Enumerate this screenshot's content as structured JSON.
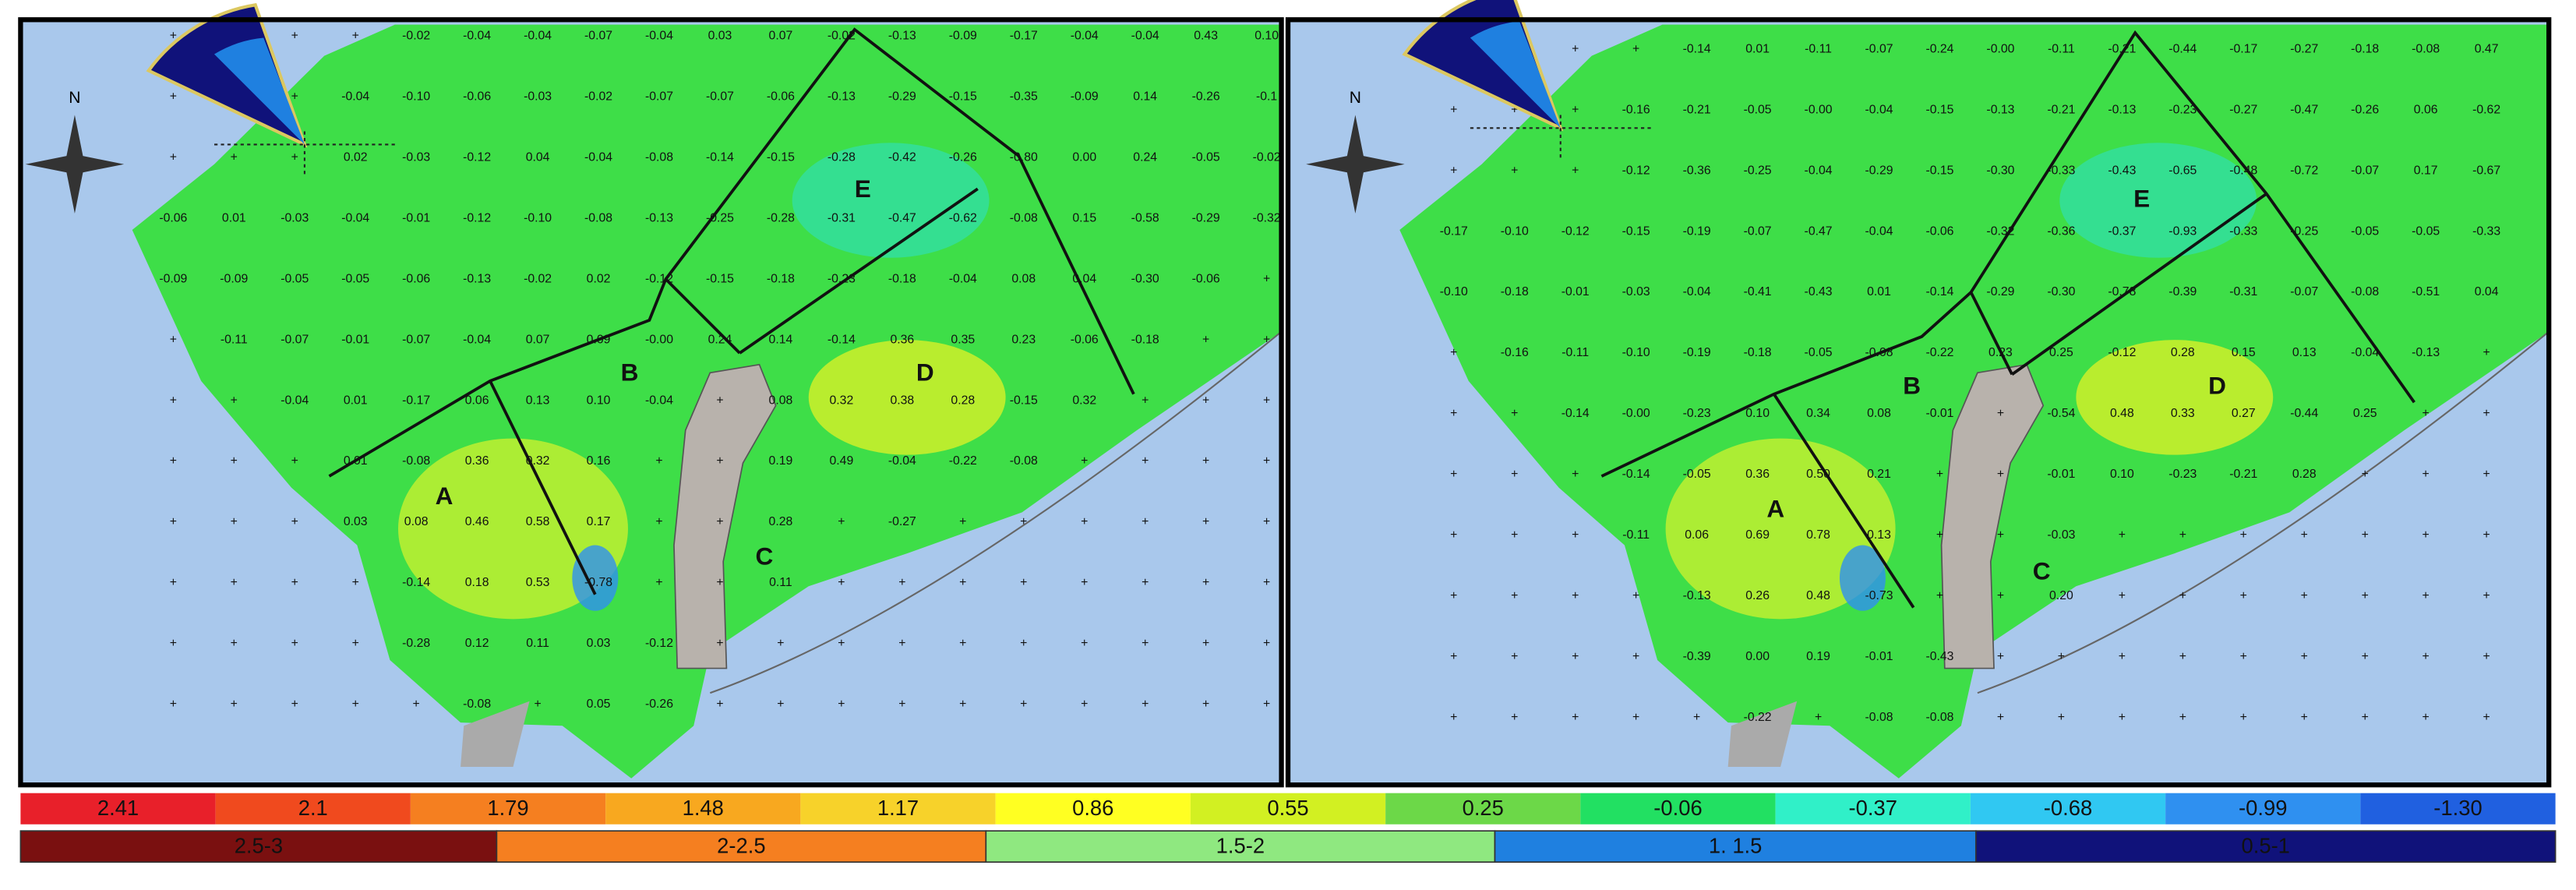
{
  "maps": [
    {
      "north": "N",
      "zones": [
        "A",
        "B",
        "C",
        "D",
        "E"
      ],
      "rows": [
        [
          null,
          null,
          null,
          null,
          "-0.02",
          "-0.04",
          "-0.04",
          "-0.07",
          "-0.04",
          "0.03",
          "0.07",
          "-0.02",
          "-0.13",
          "-0.09",
          "-0.17",
          "-0.04",
          "-0.04",
          "0.43",
          "0.10"
        ],
        [
          null,
          null,
          null,
          "-0.04",
          "-0.10",
          "-0.06",
          "-0.03",
          "-0.02",
          "-0.07",
          "-0.07",
          "-0.06",
          "-0.13",
          "-0.29",
          "-0.15",
          "-0.35",
          "-0.09",
          "0.14",
          "-0.26",
          "-0.1"
        ],
        [
          null,
          null,
          null,
          "0.02",
          "-0.03",
          "-0.12",
          "0.04",
          "-0.04",
          "-0.08",
          "-0.14",
          "-0.15",
          "-0.28",
          "-0.42",
          "-0.26",
          "-0.80",
          "0.00",
          "0.24",
          "-0.05",
          "-0.02"
        ],
        [
          "-0.06",
          "0.01",
          "-0.03",
          "-0.04",
          "-0.01",
          "-0.12",
          "-0.10",
          "-0.08",
          "-0.13",
          "-0.25",
          "-0.28",
          "-0.31",
          "-0.47",
          "-0.62",
          "-0.08",
          "0.15",
          "-0.58",
          "-0.29",
          "-0.32"
        ],
        [
          "-0.09",
          "-0.09",
          "-0.05",
          "-0.05",
          "-0.06",
          "-0.13",
          "-0.02",
          "0.02",
          "-0.12",
          "-0.15",
          "-0.18",
          "-0.23",
          "-0.18",
          "-0.04",
          "0.08",
          "0.04",
          "-0.30",
          "-0.06",
          null
        ],
        [
          null,
          "-0.11",
          "-0.07",
          "-0.01",
          "-0.07",
          "-0.04",
          "0.07",
          "0.09",
          "-0.00",
          "0.24",
          "0.14",
          "-0.14",
          "0.36",
          "0.35",
          "0.23",
          "-0.06",
          "-0.18",
          null,
          null
        ],
        [
          null,
          null,
          "-0.04",
          "0.01",
          "-0.17",
          "0.06",
          "0.13",
          "0.10",
          "-0.04",
          null,
          "0.08",
          "0.32",
          "0.38",
          "0.28",
          "-0.15",
          "0.32",
          null,
          null,
          null
        ],
        [
          null,
          null,
          null,
          "0.01",
          "-0.08",
          "0.36",
          "0.32",
          "0.16",
          null,
          null,
          "0.19",
          "0.49",
          "-0.04",
          "-0.22",
          "-0.08",
          null,
          null,
          null,
          null
        ],
        [
          null,
          null,
          null,
          "0.03",
          "0.08",
          "0.46",
          "0.58",
          "0.17",
          null,
          null,
          "0.28",
          null,
          "-0.27",
          null,
          null,
          null,
          null,
          null,
          null
        ],
        [
          null,
          null,
          null,
          null,
          "-0.14",
          "0.18",
          "0.53",
          "-0.78",
          null,
          null,
          "0.11",
          null,
          null,
          null,
          null,
          null,
          null,
          null,
          null
        ],
        [
          null,
          null,
          null,
          null,
          "-0.28",
          "0.12",
          "0.11",
          "0.03",
          "-0.12",
          null,
          null,
          null,
          null,
          null,
          null,
          null,
          null,
          null,
          null
        ],
        [
          null,
          null,
          null,
          null,
          null,
          "-0.08",
          null,
          "0.05",
          "-0.26",
          null,
          null,
          null,
          null,
          null,
          null,
          null,
          null,
          null,
          null
        ]
      ]
    },
    {
      "north": "N",
      "zones": [
        "A",
        "B",
        "C",
        "D",
        "E"
      ],
      "rows": [
        [
          null,
          null,
          null,
          null,
          "-0.14",
          "0.01",
          "-0.11",
          "-0.07",
          "-0.24",
          "-0.00",
          "-0.11",
          "-0.21",
          "-0.44",
          "-0.17",
          "-0.27",
          "-0.18",
          "-0.08",
          "0.47",
          null
        ],
        [
          null,
          null,
          null,
          "-0.16",
          "-0.21",
          "-0.05",
          "-0.00",
          "-0.04",
          "-0.15",
          "-0.13",
          "-0.21",
          "-0.13",
          "-0.23",
          "-0.27",
          "-0.47",
          "-0.26",
          "0.06",
          "-0.62",
          null
        ],
        [
          null,
          null,
          null,
          "-0.12",
          "-0.36",
          "-0.25",
          "-0.04",
          "-0.29",
          "-0.15",
          "-0.30",
          "-0.33",
          "-0.43",
          "-0.65",
          "-0.48",
          "-0.72",
          "-0.07",
          "0.17",
          "-0.67",
          null
        ],
        [
          "-0.17",
          "-0.10",
          "-0.12",
          "-0.15",
          "-0.19",
          "-0.07",
          "-0.47",
          "-0.04",
          "-0.06",
          "-0.32",
          "-0.36",
          "-0.37",
          "-0.93",
          "-0.33",
          "-0.25",
          "-0.05",
          "-0.05",
          "-0.33",
          null
        ],
        [
          "-0.10",
          "-0.18",
          "-0.01",
          "-0.03",
          "-0.04",
          "-0.41",
          "-0.43",
          "0.01",
          "-0.14",
          "-0.29",
          "-0.30",
          "-0.78",
          "-0.39",
          "-0.31",
          "-0.07",
          "-0.08",
          "-0.51",
          "0.04",
          null
        ],
        [
          null,
          "-0.16",
          "-0.11",
          "-0.10",
          "-0.19",
          "-0.18",
          "-0.05",
          "-0.08",
          "-0.22",
          "0.23",
          "0.25",
          "-0.12",
          "0.28",
          "0.15",
          "0.13",
          "-0.04",
          "-0.13",
          null,
          null
        ],
        [
          null,
          null,
          "-0.14",
          "-0.00",
          "-0.23",
          "0.10",
          "0.34",
          "0.08",
          "-0.01",
          null,
          "-0.54",
          "0.48",
          "0.33",
          "0.27",
          "-0.44",
          "0.25",
          null,
          null,
          null
        ],
        [
          null,
          null,
          null,
          "-0.14",
          "-0.05",
          "0.36",
          "0.50",
          "0.21",
          null,
          null,
          "-0.01",
          "0.10",
          "-0.23",
          "-0.21",
          "0.28",
          null,
          null,
          null,
          null
        ],
        [
          null,
          null,
          null,
          "-0.11",
          "0.06",
          "0.69",
          "0.78",
          "0.13",
          null,
          null,
          "-0.03",
          null,
          null,
          null,
          null,
          null,
          null,
          null,
          null
        ],
        [
          null,
          null,
          null,
          null,
          "-0.13",
          "0.26",
          "0.48",
          "-0.73",
          null,
          null,
          "0.20",
          null,
          null,
          null,
          null,
          null,
          null,
          null,
          null
        ],
        [
          null,
          null,
          null,
          null,
          "-0.39",
          "0.00",
          "0.19",
          "-0.01",
          "-0.43",
          null,
          null,
          null,
          null,
          null,
          null,
          null,
          null,
          null,
          null
        ],
        [
          null,
          null,
          null,
          null,
          null,
          "-0.22",
          null,
          "-0.08",
          "-0.08",
          null,
          null,
          null,
          null,
          null,
          null,
          null,
          null,
          null,
          null
        ]
      ]
    }
  ],
  "legend": {
    "scale": [
      {
        "label": "2.41",
        "color": "#e8202a"
      },
      {
        "label": "2.1",
        "color": "#f04a1e"
      },
      {
        "label": "1.79",
        "color": "#f57f20"
      },
      {
        "label": "1.48",
        "color": "#f8a81f"
      },
      {
        "label": "1.17",
        "color": "#f7d22a"
      },
      {
        "label": "0.86",
        "color": "#ffff22"
      },
      {
        "label": "0.55",
        "color": "#d2f022"
      },
      {
        "label": "0.25",
        "color": "#6cd848"
      },
      {
        "label": "-0.06",
        "color": "#22e062"
      },
      {
        "label": "-0.37",
        "color": "#30f0c8"
      },
      {
        "label": "-0.68",
        "color": "#30c8f2"
      },
      {
        "label": "-0.99",
        "color": "#2f90f0"
      },
      {
        "label": "-1.30",
        "color": "#2060e0"
      }
    ],
    "wind": [
      {
        "label": "2.5-3",
        "color": "#7a1010"
      },
      {
        "label": "2-2.5",
        "color": "#f57f20"
      },
      {
        "label": "1.5-2",
        "color": "#8fe880"
      },
      {
        "label": "1. 1.5",
        "color": "#1f80e0"
      },
      {
        "label": "0.5-1",
        "color": "#10127a"
      }
    ]
  }
}
